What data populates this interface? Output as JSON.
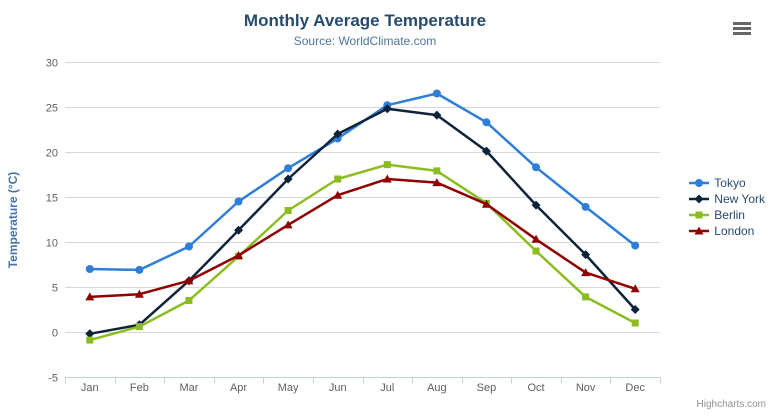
{
  "header": {
    "title": "Monthly Average Temperature",
    "subtitle": "Source: WorldClimate.com"
  },
  "credits": "Highcharts.com",
  "chart_data": {
    "type": "line",
    "title": "Monthly Average Temperature",
    "subtitle": "Source: WorldClimate.com",
    "categories": [
      "Jan",
      "Feb",
      "Mar",
      "Apr",
      "May",
      "Jun",
      "Jul",
      "Aug",
      "Sep",
      "Oct",
      "Nov",
      "Dec"
    ],
    "xlabel": "",
    "ylabel": "Temperature (°C)",
    "ylim": [
      -5,
      30
    ],
    "ytick_step": 5,
    "grid": true,
    "legend_position": "right",
    "colors": {
      "grid": "#d8d8d8",
      "axis_line": "#c0d0e0",
      "tick_label": "#606060",
      "title": "#274b6d",
      "subtitle": "#4d759e",
      "yaxis_title": "#4572a7"
    },
    "series": [
      {
        "name": "Tokyo",
        "color": "#2f7ed8",
        "symbol": "circle",
        "values": [
          7.0,
          6.9,
          9.5,
          14.5,
          18.2,
          21.5,
          25.2,
          26.5,
          23.3,
          18.3,
          13.9,
          9.6
        ]
      },
      {
        "name": "New York",
        "color": "#0d233a",
        "symbol": "diamond",
        "values": [
          -0.2,
          0.8,
          5.7,
          11.3,
          17.0,
          22.0,
          24.8,
          24.1,
          20.1,
          14.1,
          8.6,
          2.5
        ]
      },
      {
        "name": "Berlin",
        "color": "#8bbc21",
        "symbol": "square",
        "values": [
          -0.9,
          0.6,
          3.5,
          8.4,
          13.5,
          17.0,
          18.6,
          17.9,
          14.3,
          9.0,
          3.9,
          1.0
        ]
      },
      {
        "name": "London",
        "color": "#910000",
        "symbol": "triangle",
        "values": [
          3.9,
          4.2,
          5.7,
          8.5,
          11.9,
          15.2,
          17.0,
          16.6,
          14.2,
          10.3,
          6.6,
          4.8
        ]
      }
    ]
  }
}
